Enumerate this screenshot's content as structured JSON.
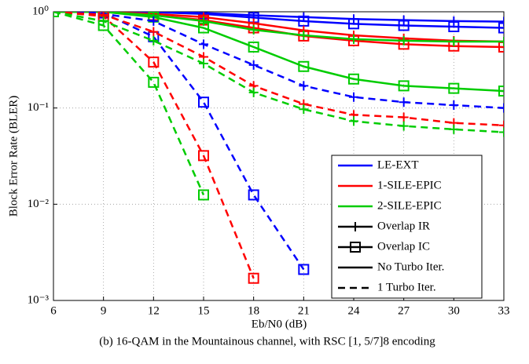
{
  "chart_data": {
    "type": "line",
    "ylabel": "Block Error Rate (BLER)",
    "xlabel": "Eb/N0 (dB)",
    "caption": "(b) 16-QAM in the Mountainous channel, with RSC [1, 5/7]8 encoding",
    "log_y": true,
    "grid": true,
    "legend_position": "lower right",
    "x": [
      6,
      9,
      12,
      15,
      18,
      21,
      24,
      27,
      30,
      33
    ],
    "xlim": [
      6,
      33
    ],
    "xticks": [
      6,
      9,
      12,
      15,
      18,
      21,
      24,
      27,
      30,
      33
    ],
    "ylim": [
      0.001,
      1
    ],
    "yticks": [
      {
        "value": 0.001,
        "label": "10⁻³"
      },
      {
        "value": 0.01,
        "label": "10⁻²"
      },
      {
        "value": 0.1,
        "label": "10⁻¹"
      },
      {
        "value": 1,
        "label": "10⁰"
      }
    ],
    "series": [
      {
        "color": "#0000ff",
        "dash": false,
        "marker": "plus",
        "values": [
          1,
          1,
          1,
          0.97,
          0.92,
          0.88,
          0.84,
          0.82,
          0.8,
          0.79
        ]
      },
      {
        "color": "#0000ff",
        "dash": false,
        "marker": "square",
        "values": [
          1,
          1,
          0.99,
          0.95,
          0.87,
          0.8,
          0.75,
          0.72,
          0.7,
          0.68
        ]
      },
      {
        "color": "#ff0000",
        "dash": false,
        "marker": "plus",
        "values": [
          1,
          1,
          0.95,
          0.88,
          0.76,
          0.64,
          0.57,
          0.53,
          0.5,
          0.49
        ]
      },
      {
        "color": "#ff0000",
        "dash": false,
        "marker": "square",
        "values": [
          1,
          1,
          0.92,
          0.82,
          0.68,
          0.56,
          0.5,
          0.46,
          0.44,
          0.43
        ]
      },
      {
        "color": "#00cc00",
        "dash": false,
        "marker": "plus",
        "values": [
          1,
          1,
          0.92,
          0.8,
          0.65,
          0.57,
          0.52,
          0.5,
          0.49,
          0.49
        ]
      },
      {
        "color": "#00cc00",
        "dash": false,
        "marker": "square",
        "values": [
          1,
          1,
          0.88,
          0.68,
          0.43,
          0.27,
          0.2,
          0.17,
          0.16,
          0.15
        ]
      },
      {
        "color": "#0000ff",
        "dash": true,
        "marker": "plus",
        "values": [
          1,
          0.95,
          0.8,
          0.46,
          0.28,
          0.17,
          0.13,
          0.115,
          0.107,
          0.1
        ]
      },
      {
        "color": "#0000ff",
        "dash": true,
        "marker": "square",
        "values": [
          1,
          0.97,
          0.55,
          0.115,
          0.0125,
          0.0021,
          null,
          null,
          null,
          null
        ]
      },
      {
        "color": "#ff0000",
        "dash": true,
        "marker": "plus",
        "values": [
          1,
          0.93,
          0.62,
          0.34,
          0.17,
          0.11,
          0.085,
          0.08,
          0.07,
          0.066
        ]
      },
      {
        "color": "#ff0000",
        "dash": true,
        "marker": "square",
        "values": [
          1,
          0.9,
          0.3,
          0.032,
          0.0017,
          null,
          null,
          null,
          null,
          null
        ]
      },
      {
        "color": "#00cc00",
        "dash": true,
        "marker": "plus",
        "values": [
          1,
          0.8,
          0.5,
          0.29,
          0.145,
          0.097,
          0.073,
          0.065,
          0.06,
          0.056
        ]
      },
      {
        "color": "#00cc00",
        "dash": true,
        "marker": "square",
        "values": [
          1,
          0.72,
          0.185,
          0.0125,
          null,
          null,
          null,
          null,
          null,
          null
        ]
      }
    ],
    "legend": [
      {
        "label": "LE-EXT",
        "color": "#0000ff",
        "dash": false
      },
      {
        "label": "1-SILE-EPIC",
        "color": "#ff0000",
        "dash": false
      },
      {
        "label": "2-SILE-EPIC",
        "color": "#00cc00",
        "dash": false
      },
      {
        "label": "Overlap IR",
        "color": "#000000",
        "dash": false,
        "marker": "plus"
      },
      {
        "label": "Overlap IC",
        "color": "#000000",
        "dash": false,
        "marker": "square"
      },
      {
        "label": "No Turbo Iter.",
        "color": "#000000",
        "dash": false
      },
      {
        "label": "1 Turbo Iter.",
        "color": "#000000",
        "dash": true
      }
    ]
  }
}
